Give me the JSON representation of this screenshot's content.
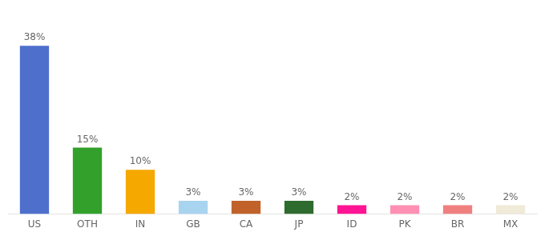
{
  "chart_data": {
    "type": "bar",
    "categories": [
      "US",
      "OTH",
      "IN",
      "GB",
      "CA",
      "JP",
      "ID",
      "PK",
      "BR",
      "MX"
    ],
    "values": [
      38,
      15,
      10,
      3,
      3,
      3,
      2,
      2,
      2,
      2
    ],
    "value_labels": [
      "38%",
      "15%",
      "10%",
      "3%",
      "3%",
      "3%",
      "2%",
      "2%",
      "2%",
      "2%"
    ],
    "colors": [
      "#4f6fcc",
      "#33a02c",
      "#f5a800",
      "#a8d4f0",
      "#c0622a",
      "#2e6b2e",
      "#ff1493",
      "#ff90b3",
      "#f08080",
      "#f0ead8"
    ],
    "ylim": [
      0,
      44
    ],
    "data_labels": true,
    "tick_labels": "x",
    "grid": false
  }
}
